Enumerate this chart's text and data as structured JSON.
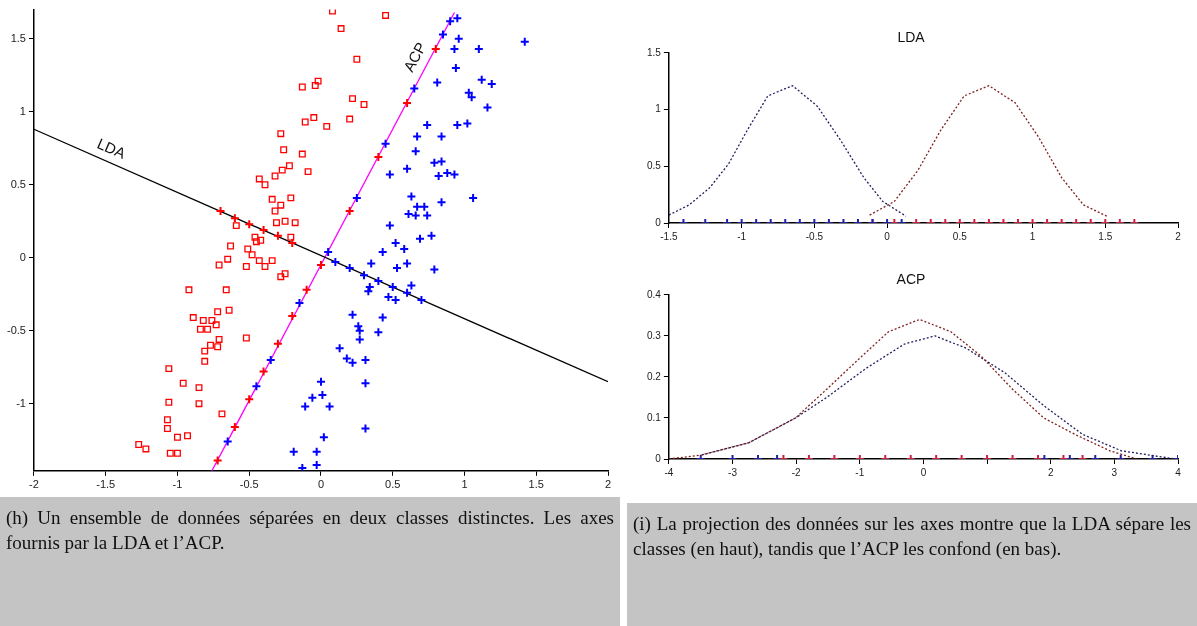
{
  "chart_data": [
    {
      "type": "scatter",
      "xlim": [
        -2,
        2
      ],
      "xticks": [
        -2,
        -1.5,
        -1,
        -0.5,
        0,
        0.5,
        1,
        1.5,
        2
      ],
      "ylim": [
        -1.46,
        1.7
      ],
      "yticks": [
        -1,
        -0.5,
        0,
        0.5,
        1,
        1.5
      ],
      "series": [
        {
          "marker": "square",
          "color": "#ff0000",
          "x": [
            -0.13,
            -0.04,
            -0.11,
            -0.05,
            -0.28,
            -0.26,
            -0.13,
            -0.09,
            -0.43,
            -0.39,
            -0.32,
            -0.27,
            -0.22,
            -0.34,
            -0.21,
            -0.28,
            -0.32,
            -0.31,
            -0.25,
            -0.18,
            -0.59,
            -0.46,
            -0.42,
            -0.21,
            -0.45,
            -0.63,
            -0.51,
            -0.65,
            -0.71,
            -0.48,
            -0.43,
            -0.52,
            -0.39,
            -0.34,
            -0.28,
            -0.25,
            -0.92,
            -0.66,
            -0.72,
            -0.64,
            -0.89,
            -0.82,
            -0.76,
            -0.84,
            -0.79,
            -0.73,
            -0.52,
            -0.71,
            -0.77,
            -0.72,
            -0.81,
            -0.81,
            -1.06,
            -0.96,
            -0.85,
            -1.06,
            -0.85,
            -0.69,
            -1.07,
            -1.07,
            -1.0,
            -0.93,
            -1.27,
            -1.22,
            -1.05,
            -1.0,
            0.08,
            0.14,
            0.45,
            0.25,
            -0.02,
            0.22,
            0.3,
            0.04,
            0.2
          ],
          "values": [
            1.17,
            1.18,
            0.93,
            0.96,
            0.85,
            0.74,
            0.71,
            0.59,
            0.54,
            0.5,
            0.56,
            0.6,
            0.63,
            0.4,
            0.41,
            0.36,
            0.32,
            0.24,
            0.25,
            0.24,
            0.22,
            0.14,
            0.12,
            0.14,
            0.11,
            0.08,
            0.06,
            -0.01,
            -0.05,
            0.02,
            -0.02,
            -0.06,
            -0.06,
            -0.02,
            -0.13,
            -0.11,
            -0.22,
            -0.22,
            -0.37,
            -0.36,
            -0.41,
            -0.43,
            -0.43,
            -0.49,
            -0.49,
            -0.46,
            -0.55,
            -0.56,
            -0.6,
            -0.61,
            -0.64,
            -0.71,
            -0.76,
            -0.86,
            -0.89,
            -0.99,
            -1.0,
            -1.07,
            -1.11,
            -1.17,
            -1.23,
            -1.22,
            -1.28,
            -1.31,
            -1.34,
            -1.34,
            1.69,
            1.57,
            1.66,
            1.36,
            1.21,
            1.09,
            1.05,
            0.9,
            0.95
          ]
        },
        {
          "marker": "cross",
          "color": "#0000ff",
          "x": [
            0.95,
            0.96,
            0.93,
            1.1,
            1.42,
            0.94,
            0.81,
            1.12,
            1.19,
            1.03,
            1.05,
            1.16,
            0.74,
            0.95,
            1.02,
            0.67,
            0.84,
            0.66,
            0.48,
            0.6,
            0.79,
            0.84,
            0.82,
            0.88,
            0.93,
            1.06,
            0.84,
            0.63,
            0.67,
            0.61,
            0.66,
            0.72,
            0.74,
            0.48,
            0.69,
            0.77,
            0.52,
            0.58,
            0.43,
            0.6,
            0.79,
            0.53,
            0.35,
            0.34,
            0.33,
            0.47,
            0.52,
            0.63,
            0.22,
            0.43,
            0.26,
            0.27,
            0.4,
            0.27,
            0.13,
            0.18,
            0.22,
            0.31,
            0.31,
            0.0,
            0.01,
            -0.06,
            0.06,
            -0.11,
            0.31,
            0.02,
            -0.03,
            -0.13,
            -0.03,
            -0.19
          ],
          "values": [
            1.64,
            1.5,
            1.43,
            1.43,
            1.48,
            1.3,
            1.2,
            1.22,
            1.19,
            1.13,
            1.1,
            1.03,
            0.91,
            0.91,
            0.92,
            0.83,
            0.83,
            0.73,
            0.57,
            0.61,
            0.65,
            0.66,
            0.56,
            0.58,
            0.57,
            0.41,
            0.38,
            0.42,
            0.35,
            0.3,
            0.29,
            0.35,
            0.29,
            0.22,
            0.13,
            0.15,
            0.1,
            0.06,
            0.04,
            -0.04,
            -0.08,
            -0.07,
            -0.04,
            -0.2,
            -0.23,
            -0.27,
            -0.29,
            -0.19,
            -0.39,
            -0.41,
            -0.47,
            -0.5,
            -0.51,
            -0.56,
            -0.62,
            -0.69,
            -0.72,
            -0.7,
            -0.86,
            -0.85,
            -0.94,
            -0.96,
            -1.02,
            -1.02,
            -1.17,
            -1.23,
            -1.33,
            -1.44,
            -1.42,
            -1.33
          ]
        },
        {
          "marker": "cross",
          "color": "#ff0000",
          "x": [
            -0.7,
            -0.6,
            -0.5,
            -0.4,
            -0.3,
            -0.2,
            -0.72,
            -0.6,
            -0.5,
            -0.4,
            -0.3,
            -0.2,
            -0.1,
            0.0,
            0.2,
            0.4,
            0.6,
            0.8
          ],
          "values": [
            0.32,
            0.27,
            0.23,
            0.19,
            0.15,
            0.1,
            -1.39,
            -1.16,
            -0.97,
            -0.78,
            -0.59,
            -0.4,
            -0.22,
            -0.05,
            0.32,
            0.69,
            1.06,
            1.43
          ]
        },
        {
          "marker": "cross",
          "color": "#0000ff",
          "x": [
            0.1,
            0.2,
            0.3,
            0.4,
            0.5,
            0.6,
            0.7,
            -0.65,
            -0.45,
            -0.35,
            -0.15,
            0.05,
            0.25,
            0.45,
            0.65,
            0.85,
            0.9
          ],
          "values": [
            -0.03,
            -0.07,
            -0.12,
            -0.16,
            -0.2,
            -0.24,
            -0.29,
            -1.26,
            -0.88,
            -0.7,
            -0.31,
            0.04,
            0.41,
            0.78,
            1.16,
            1.53,
            1.62
          ]
        },
        {
          "type": "line",
          "marker": "none",
          "line_style": "solid",
          "color": "#000000",
          "x": [
            -2,
            2
          ],
          "values": [
            0.88,
            -0.85
          ]
        },
        {
          "type": "line",
          "marker": "none",
          "line_style": "solid",
          "color": "#ff00ff",
          "x": [
            -0.76,
            0.93
          ],
          "values": [
            -1.46,
            1.68
          ]
        }
      ],
      "annotations": [
        {
          "text": "LDA",
          "x": -1.5,
          "y": 0.66
        },
        {
          "text": "ACP",
          "x": 0.74,
          "y": 1.33
        },
        "(h) Un ensemble de données séparées en deux classes distinctes. Les axes fournis par la LDA et l’ACP."
      ]
    },
    {
      "type": "line",
      "title": "LDA",
      "xlim": [
        -1.5,
        2
      ],
      "xticks": [
        -1.5,
        -1,
        -0.5,
        0,
        0.5,
        1,
        1.5,
        2
      ],
      "ylim": [
        0,
        1.5
      ],
      "yticks": [
        0,
        0.5,
        1,
        1.5
      ],
      "series": [
        {
          "marker": "none",
          "line_style": "dotted",
          "color": "#202060",
          "x": [
            -1.5,
            -1.36,
            -1.22,
            -1.09,
            -0.96,
            -0.82,
            -0.65,
            -0.48,
            -0.32,
            -0.16,
            -0.03,
            0.13
          ],
          "values": [
            0.07,
            0.16,
            0.31,
            0.52,
            0.82,
            1.12,
            1.21,
            1.03,
            0.73,
            0.4,
            0.19,
            0.06
          ]
        },
        {
          "marker": "none",
          "line_style": "dotted",
          "color": "#802020",
          "x": [
            -0.12,
            0.05,
            0.21,
            0.37,
            0.53,
            0.7,
            0.88,
            1.04,
            1.2,
            1.35,
            1.51
          ],
          "values": [
            0.07,
            0.19,
            0.46,
            0.82,
            1.12,
            1.21,
            1.06,
            0.76,
            0.4,
            0.16,
            0.06
          ]
        },
        {
          "type": "scatter",
          "marker": "cross",
          "color": "#2020a0",
          "x": [
            -1.4,
            -1.25,
            -1.1,
            -1.0,
            -0.9,
            -0.8,
            -0.7,
            -0.6,
            -0.5,
            -0.4,
            -0.3,
            -0.2,
            -0.1,
            0.0,
            0.1
          ],
          "values": [
            0,
            0,
            0,
            0,
            0,
            0,
            0,
            0,
            0,
            0,
            0,
            0,
            0,
            0,
            0
          ]
        },
        {
          "type": "scatter",
          "marker": "cross",
          "color": "#cc2040",
          "x": [
            -0.1,
            0.05,
            0.2,
            0.3,
            0.4,
            0.5,
            0.6,
            0.7,
            0.8,
            0.9,
            1.0,
            1.1,
            1.2,
            1.3,
            1.4,
            1.5,
            1.6,
            1.7
          ],
          "values": [
            0,
            0,
            0,
            0,
            0,
            0,
            0,
            0,
            0,
            0,
            0,
            0,
            0,
            0,
            0,
            0,
            0,
            0
          ]
        }
      ]
    },
    {
      "type": "line",
      "title": "ACP",
      "xlim": [
        -4,
        4
      ],
      "xticks": [
        -4,
        -3,
        -2,
        -1,
        0,
        {
          "value": 1,
          "label": null
        },
        2,
        3,
        4
      ],
      "ylim": [
        0,
        0.4
      ],
      "yticks": [
        0,
        0.1,
        0.2,
        0.3,
        0.4
      ],
      "series": [
        {
          "marker": "none",
          "line_style": "dotted",
          "color": "#802020",
          "x": [
            -4,
            -3.48,
            -2.74,
            -2.01,
            -1.52,
            -1.04,
            -0.55,
            -0.06,
            0.43,
            0.91,
            1.4,
            1.89,
            2.38,
            2.93,
            3.35
          ],
          "values": [
            0,
            0.01,
            0.04,
            0.1,
            0.17,
            0.24,
            0.31,
            0.34,
            0.31,
            0.25,
            0.17,
            0.1,
            0.06,
            0.02,
            0
          ]
        },
        {
          "marker": "none",
          "line_style": "dotted",
          "color": "#202060",
          "x": [
            -3.48,
            -2.74,
            -2.01,
            -1.52,
            -0.91,
            -0.3,
            0.18,
            0.67,
            1.28,
            1.89,
            2.5,
            3.11,
            3.96
          ],
          "values": [
            0.01,
            0.04,
            0.1,
            0.15,
            0.22,
            0.28,
            0.3,
            0.27,
            0.21,
            0.13,
            0.06,
            0.02,
            0
          ]
        },
        {
          "type": "scatter",
          "marker": "cross",
          "color": "#cc2040",
          "x": [
            -2.2,
            -1.8,
            -1.4,
            -1.0,
            -0.6,
            -0.2,
            0.2,
            0.6,
            1.0,
            1.4,
            1.8,
            2.2,
            2.5
          ],
          "values": [
            0,
            0,
            0,
            0,
            0,
            0,
            0,
            0,
            0,
            0,
            0,
            0,
            0
          ]
        },
        {
          "type": "scatter",
          "marker": "cross",
          "color": "#2020a0",
          "x": [
            -3.5,
            -3.0,
            -2.6,
            -2.3,
            1.9,
            2.3,
            2.7,
            3.1,
            3.6,
            4.0
          ],
          "values": [
            0,
            0,
            0,
            0,
            0,
            0,
            0,
            0,
            0,
            0
          ]
        }
      ],
      "annotations": [
        "(i) La projection des données sur les axes montre que la LDA sépare les classes (en haut), tandis que l’ACP les confond (en bas)."
      ]
    }
  ]
}
